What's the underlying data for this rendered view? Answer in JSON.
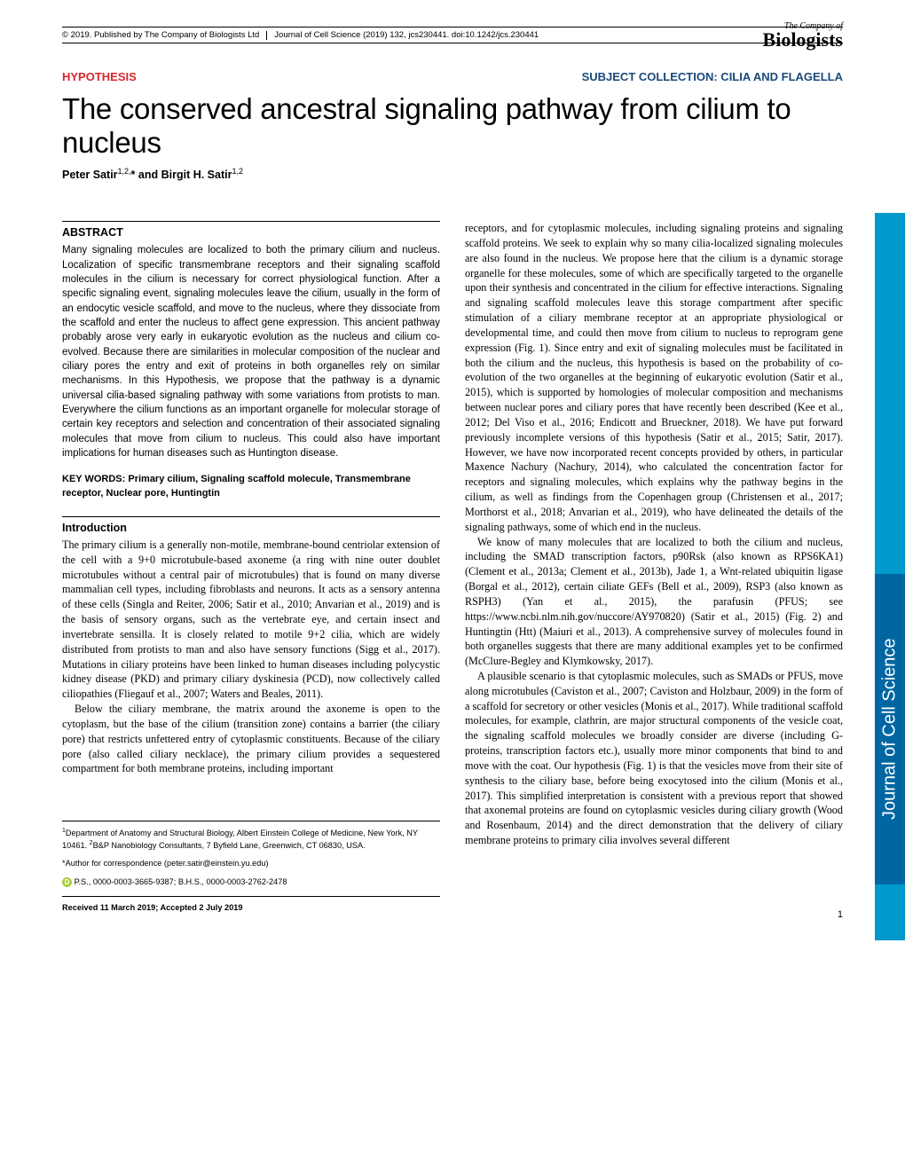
{
  "header": {
    "copyright": "© 2019. Published by The Company of Biologists Ltd",
    "journal_ref": "Journal of Cell Science (2019) 132, jcs230441. doi:10.1242/jcs.230441",
    "logo_top": "The Company of",
    "logo_main": "Biologists"
  },
  "category": "HYPOTHESIS",
  "subject_collection": "SUBJECT COLLECTION: CILIA AND FLAGELLA",
  "subject_url_text": "CILIA AND FLAGELLA",
  "title": "The conserved ancestral signaling pathway from cilium to nucleus",
  "authors_html": "Peter Satir",
  "author1": "Peter Satir",
  "author1_sup": "1,2,",
  "author_star": "*",
  "author_and": " and ",
  "author2": "Birgit H. Satir",
  "author2_sup": "1,2",
  "abstract_head": "ABSTRACT",
  "abstract": "Many signaling molecules are localized to both the primary cilium and nucleus. Localization of specific transmembrane receptors and their signaling scaffold molecules in the cilium is necessary for correct physiological function. After a specific signaling event, signaling molecules leave the cilium, usually in the form of an endocytic vesicle scaffold, and move to the nucleus, where they dissociate from the scaffold and enter the nucleus to affect gene expression. This ancient pathway probably arose very early in eukaryotic evolution as the nucleus and cilium co-evolved. Because there are similarities in molecular composition of the nuclear and ciliary pores the entry and exit of proteins in both organelles rely on similar mechanisms. In this Hypothesis, we propose that the pathway is a dynamic universal cilia-based signaling pathway with some variations from protists to man. Everywhere the cilium functions as an important organelle for molecular storage of certain key receptors and selection and concentration of their associated signaling molecules that move from cilium to nucleus. This could also have important implications for human diseases such as Huntington disease.",
  "keywords_label": "KEY WORDS: ",
  "keywords": "Primary cilium, Signaling scaffold molecule, Transmembrane receptor, Nuclear pore, Huntingtin",
  "intro_head": "Introduction",
  "intro_p1": "The primary cilium is a generally non-motile, membrane-bound centriolar extension of the cell with a 9+0 microtubule-based axoneme (a ring with nine outer doublet microtubules without a central pair of microtubules) that is found on many diverse mammalian cell types, including fibroblasts and neurons. It acts as a sensory antenna of these cells (Singla and Reiter, 2006; Satir et al., 2010; Anvarian et al., 2019) and is the basis of sensory organs, such as the vertebrate eye, and certain insect and invertebrate sensilla. It is closely related to motile 9+2 cilia, which are widely distributed from protists to man and also have sensory functions (Sigg et al., 2017). Mutations in ciliary proteins have been linked to human diseases including polycystic kidney disease (PKD) and primary ciliary dyskinesia (PCD), now collectively called ciliopathies (Fliegauf et al., 2007; Waters and Beales, 2011).",
  "intro_p2": "Below the ciliary membrane, the matrix around the axoneme is open to the cytoplasm, but the base of the cilium (transition zone) contains a barrier (the ciliary pore) that restricts unfettered entry of cytoplasmic constituents. Because of the ciliary pore (also called ciliary necklace), the primary cilium provides a sequestered compartment for both membrane proteins, including important",
  "col2_p1": "receptors, and for cytoplasmic molecules, including signaling proteins and signaling scaffold proteins. We seek to explain why so many cilia-localized signaling molecules are also found in the nucleus. We propose here that the cilium is a dynamic storage organelle for these molecules, some of which are specifically targeted to the organelle upon their synthesis and concentrated in the cilium for effective interactions. Signaling and signaling scaffold molecules leave this storage compartment after specific stimulation of a ciliary membrane receptor at an appropriate physiological or developmental time, and could then move from cilium to nucleus to reprogram gene expression (Fig. 1). Since entry and exit of signaling molecules must be facilitated in both the cilium and the nucleus, this hypothesis is based on the probability of co-evolution of the two organelles at the beginning of eukaryotic evolution (Satir et al., 2015), which is supported by homologies of molecular composition and mechanisms between nuclear pores and ciliary pores that have recently been described (Kee et al., 2012; Del Viso et al., 2016; Endicott and Brueckner, 2018). We have put forward previously incomplete versions of this hypothesis (Satir et al., 2015; Satir, 2017). However, we have now incorporated recent concepts provided by others, in particular Maxence Nachury (Nachury, 2014), who calculated the concentration factor for receptors and signaling molecules, which explains why the pathway begins in the cilium, as well as findings from the Copenhagen group (Christensen et al., 2017; Morthorst et al., 2018; Anvarian et al., 2019), who have delineated the details of the signaling pathways, some of which end in the nucleus.",
  "col2_p2": "We know of many molecules that are localized to both the cilium and nucleus, including the SMAD transcription factors, p90Rsk (also known as RPS6KA1) (Clement et al., 2013a; Clement et al., 2013b), Jade 1, a Wnt-related ubiquitin ligase (Borgal et al., 2012), certain ciliate GEFs (Bell et al., 2009), RSP3 (also known as RSPH3) (Yan et al., 2015), the parafusin (PFUS; see https://www.ncbi.nlm.nih.gov/nuccore/AY970820) (Satir et al., 2015) (Fig. 2) and Huntingtin (Htt) (Maiuri et al., 2013). A comprehensive survey of molecules found in both organelles suggests that there are many additional examples yet to be confirmed (McClure-Begley and Klymkowsky, 2017).",
  "col2_p3": "A plausible scenario is that cytoplasmic molecules, such as SMADs or PFUS, move along microtubules (Caviston et al., 2007; Caviston and Holzbaur, 2009) in the form of a scaffold for secretory or other vesicles (Monis et al., 2017). While traditional scaffold molecules, for example, clathrin, are major structural components of the vesicle coat, the signaling scaffold molecules we broadly consider are diverse (including G-proteins, transcription factors etc.), usually more minor components that bind to and move with the coat. Our hypothesis (Fig. 1) is that the vesicles move from their site of synthesis to the ciliary base, before being exocytosed into the cilium (Monis et al., 2017). This simplified interpretation is consistent with a previous report that showed that axonemal proteins are found on cytoplasmic vesicles during ciliary growth (Wood and Rosenbaum, 2014) and the direct demonstration that the delivery of ciliary membrane proteins to primary cilia involves several different",
  "affil_1": "Department of Anatomy and Structural Biology, Albert Einstein College of Medicine, New York, NY 10461. ",
  "affil_2": "B&P Nanobiology Consultants, 7 Byfield Lane, Greenwich, CT 06830, USA.",
  "corr": "*Author for correspondence (peter.satir@einstein.yu.edu)",
  "orcid": "P.S., 0000-0003-3665-9387; B.H.S., 0000-0003-2762-2478",
  "received": "Received 11 March 2019; Accepted 2 July 2019",
  "side_label": "Journal of Cell Science",
  "page_num": "1",
  "colors": {
    "category_red": "#d9262e",
    "subject_blue": "#1a4a7a",
    "tab_light": "#0099cc",
    "tab_dark": "#0066a1",
    "orcid_green": "#a6ce39"
  }
}
